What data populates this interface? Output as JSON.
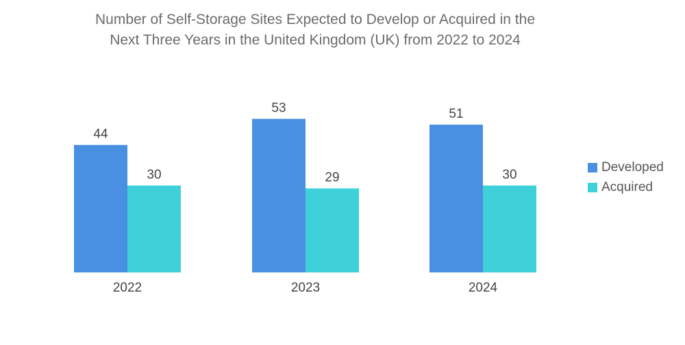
{
  "chart_data": {
    "type": "bar",
    "title_lines": [
      "Number of Self-Storage Sites Expected to Develop or Acquired in the",
      "Next Three Years in the United Kingdom (UK) from 2022 to 2024"
    ],
    "categories": [
      "2022",
      "2023",
      "2024"
    ],
    "series": [
      {
        "name": "Developed",
        "color": "#4a90e2",
        "values": [
          44,
          53,
          51
        ]
      },
      {
        "name": "Acquired",
        "color": "#3ed1d9",
        "values": [
          30,
          29,
          30
        ]
      }
    ],
    "ylim": [
      0,
      60
    ],
    "legend_position": "right",
    "grid": false
  }
}
